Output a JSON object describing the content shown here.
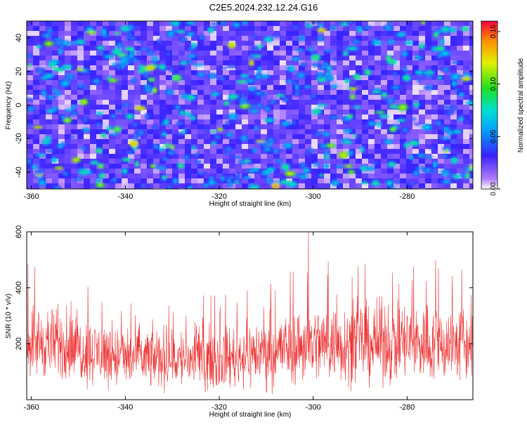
{
  "title": "C2E5.2024.232.12.24.G16",
  "chart_data": [
    {
      "type": "heatmap",
      "xlabel": "Height of straight line (km)",
      "ylabel": "Frequency (Hz)",
      "xlim": [
        -361,
        -266
      ],
      "ylim": [
        -50,
        50
      ],
      "xticks": [
        -360,
        -340,
        -320,
        -300,
        -280
      ],
      "yticks": [
        -40,
        -20,
        0,
        20,
        40
      ],
      "colorbar": {
        "label": "Normalized spectral amplitude",
        "range": [
          0,
          0.16
        ],
        "ticks": [
          0.0,
          0.05,
          0.1,
          0.15
        ],
        "tick_labels": [
          "0.00",
          "0.05",
          "0.10",
          "0.15"
        ]
      },
      "description_values": "speckled noise field, amplitudes mostly 0.01-0.05 with scattered peaks to ~0.15",
      "peak": {
        "x": -308,
        "y": -49,
        "value": 0.15
      }
    },
    {
      "type": "line",
      "xlabel": "Height of straight line (km)",
      "ylabel": "SNR (10 * v/v)",
      "xlim": [
        -361,
        -266
      ],
      "ylim": [
        0,
        600
      ],
      "xticks": [
        -360,
        -340,
        -320,
        -300,
        -280
      ],
      "yticks": [
        200,
        400,
        600
      ],
      "color": "#ee3333",
      "trend": {
        "x": [
          -361,
          -340,
          -320,
          -300,
          -280,
          -266
        ],
        "mean": [
          215,
          150,
          145,
          200,
          205,
          195
        ],
        "spread": [
          140,
          120,
          115,
          150,
          160,
          150
        ]
      },
      "max_point": {
        "x": -301,
        "y": 600
      }
    }
  ]
}
